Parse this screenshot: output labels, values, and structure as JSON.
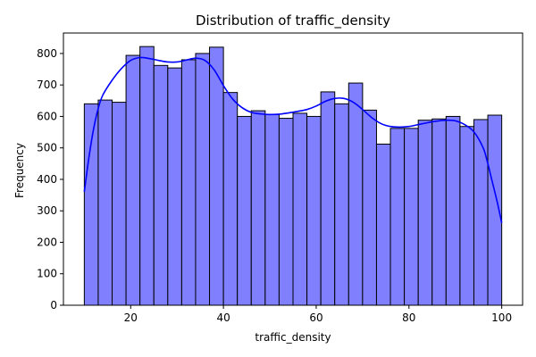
{
  "chart_data": {
    "type": "bar",
    "subtype": "histogram",
    "title": "Distribution of traffic_density",
    "xlabel": "traffic_density",
    "ylabel": "Frequency",
    "xlim": [
      5.5,
      104.5
    ],
    "ylim": [
      0,
      865
    ],
    "xticks": [
      20,
      40,
      60,
      80,
      100
    ],
    "yticks": [
      0,
      100,
      200,
      300,
      400,
      500,
      600,
      700,
      800
    ],
    "grid": false,
    "legend": "none",
    "bin_start": 10,
    "bin_end": 100,
    "bin_count": 30,
    "values": [
      640,
      652,
      645,
      794,
      822,
      762,
      754,
      780,
      800,
      820,
      676,
      600,
      618,
      606,
      594,
      610,
      600,
      678,
      640,
      706,
      620,
      512,
      562,
      562,
      588,
      592,
      600,
      568,
      590,
      604
    ],
    "kde": {
      "x": [
        10,
        11,
        12,
        13,
        14,
        16,
        18,
        20,
        22,
        24,
        26,
        28,
        30,
        32,
        34,
        36,
        38,
        40,
        42,
        44,
        46,
        48,
        50,
        52,
        54,
        56,
        58,
        60,
        62,
        64,
        66,
        68,
        70,
        72,
        74,
        76,
        78,
        80,
        82,
        84,
        86,
        88,
        90,
        92,
        94,
        96,
        97,
        98,
        99,
        100
      ],
      "y": [
        360,
        470,
        560,
        625,
        668,
        715,
        752,
        778,
        787,
        784,
        778,
        773,
        773,
        779,
        785,
        778,
        748,
        698,
        655,
        628,
        613,
        608,
        606,
        607,
        611,
        616,
        622,
        633,
        648,
        657,
        657,
        645,
        622,
        596,
        577,
        568,
        566,
        568,
        574,
        580,
        585,
        588,
        586,
        574,
        551,
        500,
        450,
        390,
        330,
        262
      ]
    },
    "colors": {
      "bar_fill": "#8080ff",
      "bar_edge": "#000000",
      "kde_line": "#0000ff"
    }
  }
}
